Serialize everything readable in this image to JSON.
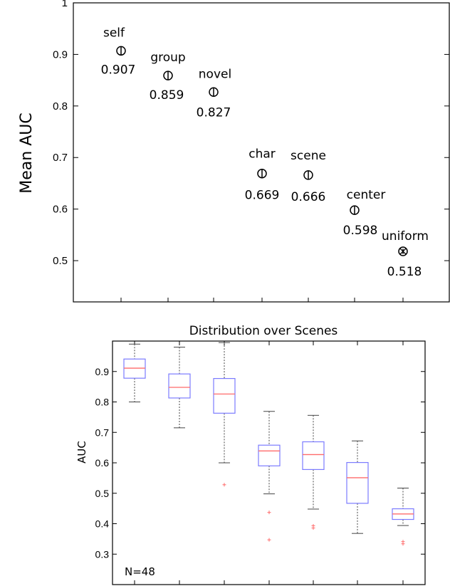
{
  "chart_data": [
    {
      "type": "scatter",
      "ylabel": "Mean AUC",
      "ylim": [
        0.42,
        1.0
      ],
      "yticks": [
        "1",
        "0.9",
        "0.8",
        "0.7",
        "0.6",
        "0.5"
      ],
      "grid": false,
      "points": [
        {
          "name": "self",
          "value_label": "0.907",
          "y": 0.907,
          "err": 0.008,
          "marker": "circle-bar"
        },
        {
          "name": "group",
          "value_label": "0.859",
          "y": 0.859,
          "err": 0.008,
          "marker": "circle-bar"
        },
        {
          "name": "novel",
          "value_label": "0.827",
          "y": 0.827,
          "err": 0.009,
          "marker": "circle-bar"
        },
        {
          "name": "char",
          "value_label": "0.669",
          "y": 0.669,
          "err": 0.009,
          "marker": "circle-bar"
        },
        {
          "name": "scene",
          "value_label": "0.666",
          "y": 0.666,
          "err": 0.009,
          "marker": "circle-bar"
        },
        {
          "name": "center",
          "value_label": "0.598",
          "y": 0.598,
          "err": 0.009,
          "marker": "circle-bar"
        },
        {
          "name": "uniform",
          "value_label": "0.518",
          "y": 0.518,
          "err": 0.005,
          "marker": "circle-x"
        }
      ]
    },
    {
      "type": "box",
      "title": "Distribution over Scenes",
      "ylabel": "AUC",
      "ylim": [
        0.2,
        1.0
      ],
      "yticks": [
        "0.9",
        "0.8",
        "0.7",
        "0.6",
        "0.5",
        "0.4",
        "0.3"
      ],
      "annotation": "N=48",
      "box_color": "#7b7bff",
      "median_color": "#ff6b6b",
      "whisker_color": "#444444",
      "boxes": [
        {
          "q1": 0.878,
          "median": 0.911,
          "q3": 0.941,
          "whisker_low": 0.8,
          "whisker_high": 0.99,
          "outliers": []
        },
        {
          "q1": 0.813,
          "median": 0.848,
          "q3": 0.892,
          "whisker_low": 0.715,
          "whisker_high": 0.98,
          "outliers": []
        },
        {
          "q1": 0.763,
          "median": 0.826,
          "q3": 0.877,
          "whisker_low": 0.6,
          "whisker_high": 0.995,
          "outliers": [
            0.528
          ]
        },
        {
          "q1": 0.59,
          "median": 0.639,
          "q3": 0.658,
          "whisker_low": 0.498,
          "whisker_high": 0.769,
          "outliers": [
            0.437,
            0.347
          ]
        },
        {
          "q1": 0.578,
          "median": 0.627,
          "q3": 0.669,
          "whisker_low": 0.448,
          "whisker_high": 0.756,
          "outliers": [
            0.393,
            0.386
          ]
        },
        {
          "q1": 0.467,
          "median": 0.551,
          "q3": 0.601,
          "whisker_low": 0.368,
          "whisker_high": 0.672,
          "outliers": []
        },
        {
          "q1": 0.414,
          "median": 0.432,
          "q3": 0.449,
          "whisker_low": 0.394,
          "whisker_high": 0.517,
          "outliers": [
            0.341,
            0.334
          ]
        }
      ]
    }
  ]
}
